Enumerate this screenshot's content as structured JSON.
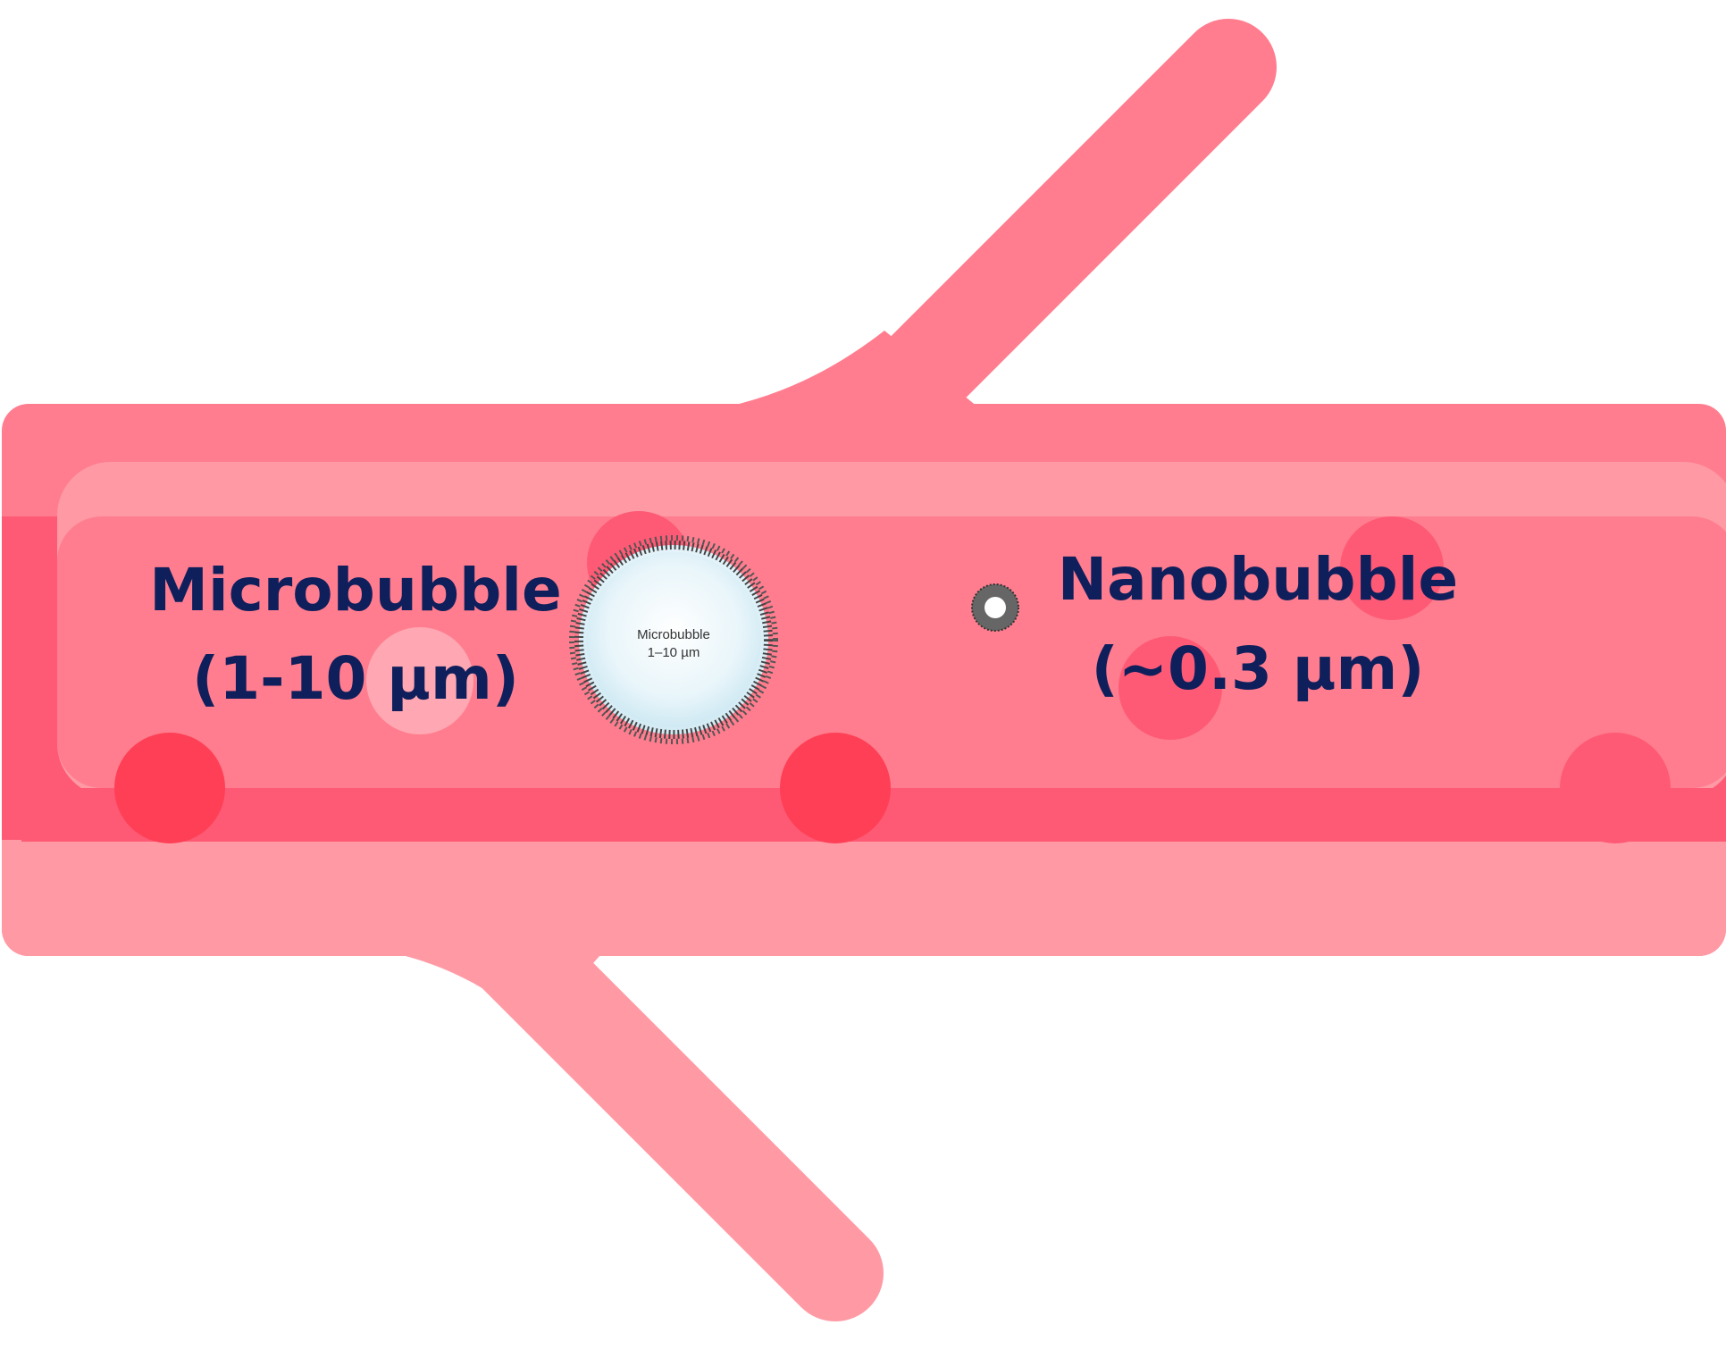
{
  "colors": {
    "vessel_base": "#ff7d8e",
    "vessel_light": "#ff9aa5",
    "vessel_dark": "#ff5a75",
    "blood_cell_dark": "#ff3f55",
    "blood_cell_pale": "#ffb5bd",
    "text_navy": "#0f1f5c",
    "bubble_fill": "#dff1f8",
    "bubble_shell": "#555555"
  },
  "microbubble": {
    "title": "Microbubble",
    "size": "(1-10 µm)",
    "inner_title": "Microbubble",
    "inner_size": "1–10 µm"
  },
  "nanobubble": {
    "title": "Nanobubble",
    "size": "(~0.3 µm)"
  }
}
